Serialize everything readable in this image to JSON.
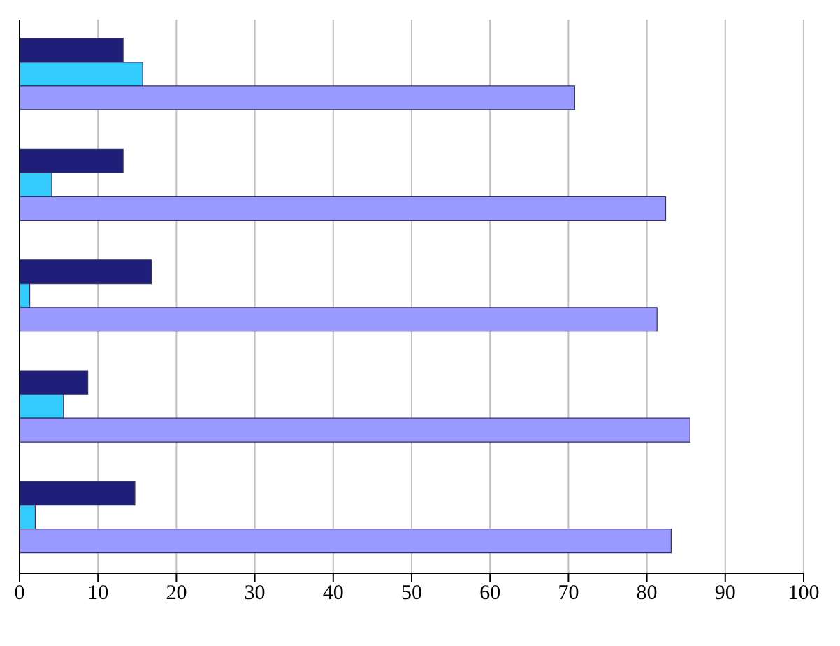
{
  "chart_data": {
    "type": "bar",
    "orientation": "horizontal",
    "categories": [
      null,
      null,
      null,
      null,
      null
    ],
    "series": [
      {
        "color": "#1f1f7a",
        "values": [
          13.2,
          13.2,
          16.8,
          8.7,
          14.7
        ]
      },
      {
        "color": "#33ccff",
        "values": [
          15.7,
          4.1,
          1.3,
          5.6,
          2.0
        ]
      },
      {
        "color": "#9999ff",
        "values": [
          70.8,
          82.4,
          81.3,
          85.5,
          83.1
        ]
      }
    ],
    "xlim": [
      0,
      100
    ],
    "xticks": [
      0,
      10,
      20,
      30,
      40,
      50,
      60,
      70,
      80,
      90,
      100
    ],
    "grid": "x"
  }
}
